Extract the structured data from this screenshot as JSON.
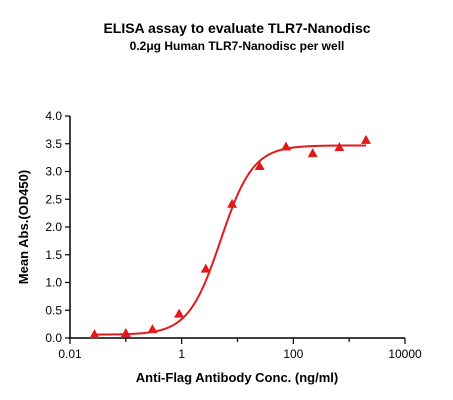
{
  "chart_data": {
    "type": "scatter",
    "title": "ELISA assay to evaluate TLR7-Nanodisc",
    "subtitle": "0.2μg Human TLR7-Nanodisc per well",
    "xlabel": "Anti-Flag Antibody Conc. (ng/ml)",
    "ylabel": "Mean Abs.(OD450)",
    "x_scale": "log",
    "xlim": [
      0.01,
      10000
    ],
    "ylim": [
      0.0,
      4.0
    ],
    "x_ticks": [
      "0.01",
      "1",
      "100",
      "10000"
    ],
    "y_ticks": [
      "0.0",
      "0.5",
      "1.0",
      "1.5",
      "2.0",
      "2.5",
      "3.0",
      "3.5",
      "4.0"
    ],
    "grid": false,
    "series": [
      {
        "marker": "triangle",
        "color": "#e31a1c",
        "x": [
          0.0274,
          0.1,
          0.3,
          0.9,
          2.7,
          8.0,
          25.0,
          74.0,
          222.0,
          667.0,
          2000.0
        ],
        "y": [
          0.07,
          0.09,
          0.16,
          0.44,
          1.25,
          2.42,
          3.1,
          3.45,
          3.33,
          3.44,
          3.57
        ]
      }
    ],
    "fit_curve": {
      "color": "#e31a1c",
      "bottom": 0.06,
      "top": 3.47,
      "ec50": 5.0,
      "hill": 1.5
    }
  }
}
